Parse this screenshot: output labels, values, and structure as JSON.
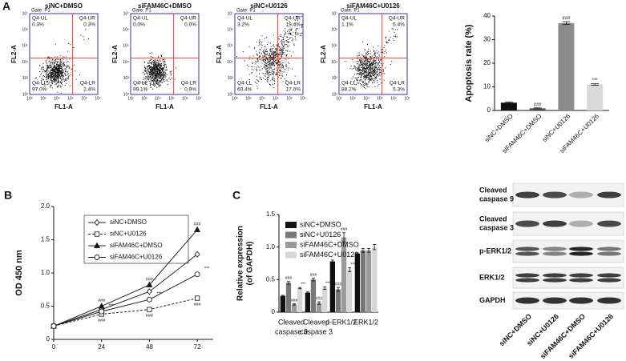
{
  "panel_labels": [
    "A",
    "B",
    "C"
  ],
  "flow_cytometry": {
    "gate": "Gate: P1",
    "xlabel": "FL1-A",
    "ylabel": "FL2-A",
    "ticks": [
      "10²",
      "10³",
      "10⁴",
      "10⁵",
      "10⁶",
      "10⁷"
    ],
    "plots": [
      {
        "title": "siNC+DMSO",
        "quadrants": [
          {
            "name": "Q4-UL",
            "value": "0.3%"
          },
          {
            "name": "Q4-UR",
            "value": "0.3%"
          },
          {
            "name": "Q4-LL",
            "value": "97.0%"
          },
          {
            "name": "Q4-LR",
            "value": "2.4%"
          }
        ]
      },
      {
        "title": "siFAM46C+DMSO",
        "quadrants": [
          {
            "name": "Q4-UL",
            "value": "0.0%"
          },
          {
            "name": "Q4-UR",
            "value": "0.0%"
          },
          {
            "name": "Q4-LL",
            "value": "99.1%"
          },
          {
            "name": "Q4-LR",
            "value": "0.9%"
          }
        ]
      },
      {
        "title": "siNC+U0126",
        "quadrants": [
          {
            "name": "Q4-UL",
            "value": "3.2%"
          },
          {
            "name": "Q4-UR",
            "value": "19.4%"
          },
          {
            "name": "Q4-LL",
            "value": "60.4%"
          },
          {
            "name": "Q4-LR",
            "value": "17.0%"
          }
        ]
      },
      {
        "title": "siFAM46C+U0126",
        "quadrants": [
          {
            "name": "Q4-UL",
            "value": "1.1%"
          },
          {
            "name": "Q4-UR",
            "value": "5.4%"
          },
          {
            "name": "Q4-LL",
            "value": "88.2%"
          },
          {
            "name": "Q4-LR",
            "value": "5.3%"
          }
        ]
      }
    ]
  },
  "chart_data": [
    {
      "type": "bar",
      "ylabel": "Apoptosis rate (%)",
      "categories": [
        "siNC+DMSO",
        "siFAM46C+DMSO",
        "siNC+U0126",
        "siFAM46C+U0126"
      ],
      "values": [
        3.3,
        0.9,
        37,
        11
      ],
      "errors": [
        0.3,
        0.2,
        0.6,
        0.3
      ],
      "colors": [
        "#111111",
        "#555555",
        "#8c8c8c",
        "#d9d9d9"
      ],
      "annotations": [
        null,
        "###",
        "###",
        "***"
      ],
      "ylim": [
        0,
        40
      ],
      "yticks": [
        0,
        10,
        20,
        30,
        40
      ]
    },
    {
      "type": "line",
      "ylabel": "OD 450 nm",
      "x": [
        0,
        24,
        48,
        72
      ],
      "xlim": [
        0,
        80
      ],
      "xticks": [
        0,
        24,
        48,
        72
      ],
      "ylim": [
        0,
        2
      ],
      "yticks": [
        0,
        0.5,
        {
          "value": 1,
          "label": "1.0"
        },
        1.5,
        {
          "value": 2,
          "label": "2.0"
        }
      ],
      "series": [
        {
          "name": "siNC+DMSO",
          "color": "#222222",
          "dashed": false,
          "marker": "diamond",
          "marker_fill": "#ffffff",
          "values": [
            0.2,
            0.45,
            0.72,
            1.28
          ],
          "annotations": [
            null,
            null,
            null,
            null
          ]
        },
        {
          "name": "siNC+U0126",
          "color": "#222222",
          "dashed": true,
          "marker": "square",
          "marker_fill": "#ffffff",
          "values": [
            0.2,
            0.38,
            0.45,
            0.62
          ],
          "annotations": [
            null,
            "###",
            "###",
            "###"
          ]
        },
        {
          "name": "siFAM46C+DMSO",
          "color": "#222222",
          "dashed": false,
          "marker": "triangle",
          "marker_fill": "#111111",
          "values": [
            0.2,
            0.5,
            0.82,
            1.65
          ],
          "annotations": [
            null,
            "###",
            "###",
            "###"
          ]
        },
        {
          "name": "siFAM46C+U0126",
          "color": "#222222",
          "dashed": false,
          "marker": "circle",
          "marker_fill": "#ffffff",
          "values": [
            0.2,
            0.42,
            0.6,
            0.98
          ],
          "annotations": [
            null,
            "***",
            "***",
            "***"
          ]
        }
      ]
    },
    {
      "type": "grouped_bar",
      "ylabel": [
        "Relative expression",
        "(of GAPDH)"
      ],
      "categories": [
        [
          "Cleaved",
          "caspase 9"
        ],
        [
          "Cleaved",
          "caspase 3"
        ],
        [
          "p-ERK1/2"
        ],
        [
          "ERK1/2"
        ]
      ],
      "ylim": [
        0,
        1.5
      ],
      "yticks": [
        0,
        0.5,
        {
          "value": 1,
          "label": "1.0"
        },
        1.5
      ],
      "series": [
        {
          "name": "siNC+DMSO",
          "color": "#111111",
          "values": [
            0.25,
            0.3,
            0.78,
            0.9
          ],
          "errors": [
            0.01,
            0.01,
            0.02,
            0.01
          ],
          "annotations": [
            null,
            null,
            null,
            null
          ]
        },
        {
          "name": "siNC+U0126",
          "color": "#777777",
          "values": [
            0.45,
            0.5,
            0.35,
            0.95
          ],
          "errors": [
            0.02,
            0.02,
            0.03,
            0.03
          ],
          "annotations": [
            "###",
            "###",
            "###",
            null
          ]
        },
        {
          "name": "siFAM46C+DMSO",
          "color": "#9a9a9a",
          "values": [
            0.12,
            0.14,
            1.15,
            0.95
          ],
          "errors": [
            0.01,
            0.02,
            0.07,
            0.03
          ],
          "annotations": [
            "###",
            "###",
            "###",
            null
          ]
        },
        {
          "name": "siFAM46C+U0126",
          "color": "#d6d6d6",
          "values": [
            0.37,
            0.37,
            0.65,
            1.0
          ],
          "errors": [
            0.01,
            0.02,
            0.03,
            0.04
          ],
          "annotations": [
            "***",
            "***",
            "***",
            null
          ]
        }
      ]
    }
  ],
  "western_blot": {
    "proteins": [
      [
        "Cleaved",
        "caspase 9"
      ],
      [
        "Cleaved",
        "caspase 3"
      ],
      [
        "p-ERK1/2"
      ],
      [
        "ERK1/2"
      ],
      [
        "GAPDH"
      ]
    ],
    "lanes": [
      "siNC+DMSO",
      "siNC+U0126",
      "siFAM46C+DMSO",
      "siFAM46C+U0126"
    ]
  }
}
